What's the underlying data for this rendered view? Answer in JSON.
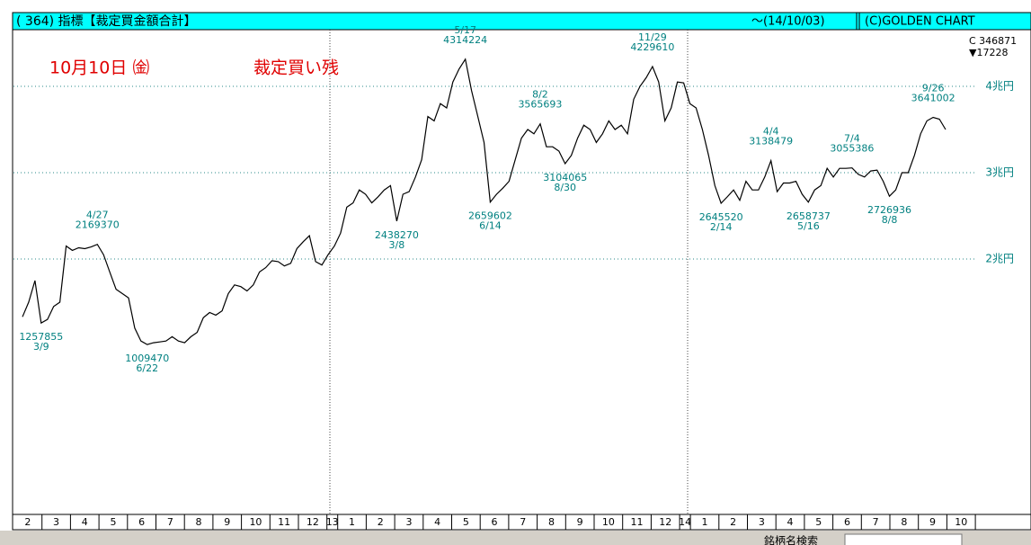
{
  "header": {
    "title": "( 364) 指標【裁定買金額合計】",
    "period": "～(14/10/03)",
    "copyright": "(C)GOLDEN CHART",
    "last_close": "C 346871",
    "last_change": "▼17228"
  },
  "overlay": {
    "date": "10月10日 ㈮",
    "caption": "裁定買い残"
  },
  "toolbar": {
    "search_label": "銘柄名検索"
  },
  "chart_data": {
    "type": "line",
    "series": [
      {
        "color": "#000000",
        "values": [
          1330000,
          1500000,
          1750000,
          1257855,
          1300000,
          1450000,
          1500000,
          2150000,
          2100000,
          2130000,
          2120000,
          2140000,
          2169370,
          2050000,
          1850000,
          1650000,
          1600000,
          1550000,
          1200000,
          1050000,
          1009470,
          1030000,
          1040000,
          1050000,
          1100000,
          1050000,
          1030000,
          1100000,
          1150000,
          1320000,
          1380000,
          1350000,
          1400000,
          1600000,
          1700000,
          1680000,
          1630000,
          1700000,
          1850000,
          1900000,
          1980000,
          1970000,
          1920000,
          1950000,
          2120000,
          2200000,
          2270000,
          1970000,
          1930000,
          2050000,
          2150000,
          2300000,
          2600000,
          2650000,
          2800000,
          2750000,
          2650000,
          2720000,
          2800000,
          2850000,
          2438270,
          2750000,
          2780000,
          2950000,
          3150000,
          3650000,
          3600000,
          3800000,
          3750000,
          4050000,
          4200000,
          4314224,
          3950000,
          3650000,
          3350000,
          2659602,
          2750000,
          2820000,
          2900000,
          3150000,
          3400000,
          3500000,
          3450000,
          3565693,
          3300000,
          3300000,
          3250000,
          3104065,
          3200000,
          3400000,
          3550000,
          3500000,
          3350000,
          3450000,
          3600000,
          3500000,
          3550000,
          3450000,
          3850000,
          4000000,
          4100000,
          4229610,
          4050000,
          3600000,
          3750000,
          4050000,
          4040000,
          3800000,
          3750000,
          3500000,
          3200000,
          2850000,
          2645520,
          2720000,
          2800000,
          2680000,
          2900000,
          2800000,
          2800000,
          2950000,
          3138479,
          2780000,
          2880000,
          2880000,
          2900000,
          2750000,
          2658737,
          2800000,
          2850000,
          3050000,
          2950000,
          3050000,
          3050000,
          3055386,
          2980000,
          2950000,
          3020000,
          3030000,
          2900000,
          2726936,
          2800000,
          3000000,
          3000000,
          3200000,
          3450000,
          3600000,
          3641002,
          3620000,
          3500000
        ]
      }
    ],
    "annotations": [
      {
        "date": "3/9",
        "value": 1257855,
        "position": "below"
      },
      {
        "date": "4/27",
        "value": 2169370,
        "position": "above"
      },
      {
        "date": "6/22",
        "value": 1009470,
        "position": "below"
      },
      {
        "date": "3/8",
        "value": 2438270,
        "position": "below"
      },
      {
        "date": "5/17",
        "value": 4314224,
        "position": "above"
      },
      {
        "date": "6/14",
        "value": 2659602,
        "position": "below"
      },
      {
        "date": "8/2",
        "value": 3565693,
        "position": "above"
      },
      {
        "date": "8/30",
        "value": 3104065,
        "position": "below"
      },
      {
        "date": "11/29",
        "value": 4229610,
        "position": "above"
      },
      {
        "date": "2/14",
        "value": 2645520,
        "position": "below"
      },
      {
        "date": "4/4",
        "value": 3138479,
        "position": "above"
      },
      {
        "date": "5/16",
        "value": 2658737,
        "position": "below"
      },
      {
        "date": "7/4",
        "value": 3055386,
        "position": "above"
      },
      {
        "date": "8/8",
        "value": 2726936,
        "position": "below"
      },
      {
        "date": "9/26",
        "value": 3641002,
        "position": "above"
      }
    ],
    "ylim": [
      -958333,
      4656250
    ],
    "yticks": [
      {
        "value": 2000000,
        "label": "2兆円"
      },
      {
        "value": 3000000,
        "label": "3兆円"
      },
      {
        "value": 4000000,
        "label": "4兆円"
      }
    ],
    "grid": true,
    "month_axis": [
      [
        "2",
        "3",
        "4",
        "5",
        "6",
        "7",
        "8",
        "9",
        "10",
        "11",
        "12"
      ],
      [
        "13",
        "1",
        "2",
        "3",
        "4",
        "5",
        "6",
        "7",
        "8",
        "9",
        "10",
        "11",
        "12"
      ],
      [
        "14",
        "1",
        "2",
        "3",
        "4",
        "5",
        "6",
        "7",
        "8",
        "9",
        "10"
      ]
    ]
  }
}
